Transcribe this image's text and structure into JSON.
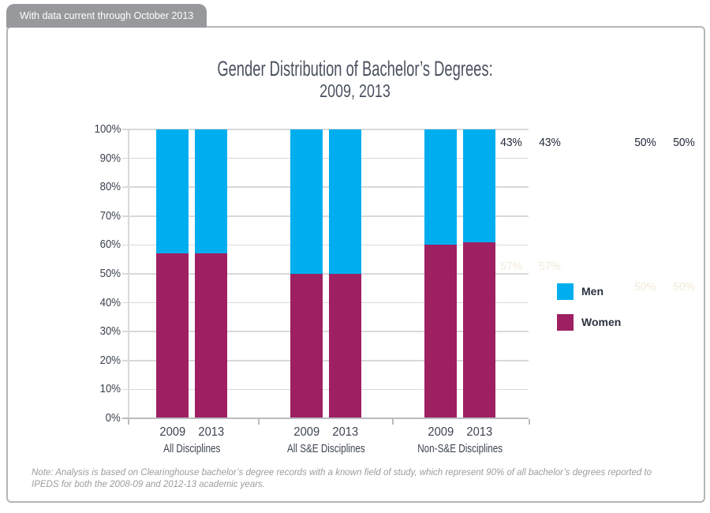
{
  "banner": {
    "text": "With data current through October 2013"
  },
  "note": {
    "text": "Note: Analysis is based on Clearinghouse bachelor’s degree records with a known field of study, which represent 90% of all bachelor’s degrees reported to IPEDS for both the 2008-09 and 2012-13 academic years."
  },
  "chart_data": {
    "type": "bar",
    "stacked": true,
    "title_lines": [
      "Gender Distribution of Bachelor’s Degrees:",
      "2009, 2013"
    ],
    "groups": [
      "All Disciplines",
      "All S&E Disciplines",
      "Non-S&E Disciplines"
    ],
    "x": [
      "2009",
      "2013"
    ],
    "series": [
      {
        "name": "Women",
        "color": "#9e2063",
        "label_color": "#f2ead8",
        "values": [
          [
            57,
            57
          ],
          [
            50,
            50
          ],
          [
            60,
            61
          ]
        ]
      },
      {
        "name": "Men",
        "color": "#00aeef",
        "label_color": "#202838",
        "values": [
          [
            43,
            43
          ],
          [
            50,
            50
          ],
          [
            40,
            39
          ]
        ]
      }
    ],
    "y_axis": {
      "min": 0,
      "max": 100,
      "step": 10,
      "suffix": "%"
    },
    "ylim": [
      0,
      100
    ],
    "grid": "horizontal",
    "legend": [
      {
        "label": "Men",
        "color": "#00aeef"
      },
      {
        "label": "Women",
        "color": "#9e2063"
      }
    ],
    "legend_position": "right",
    "value_label_suffix": "%"
  }
}
